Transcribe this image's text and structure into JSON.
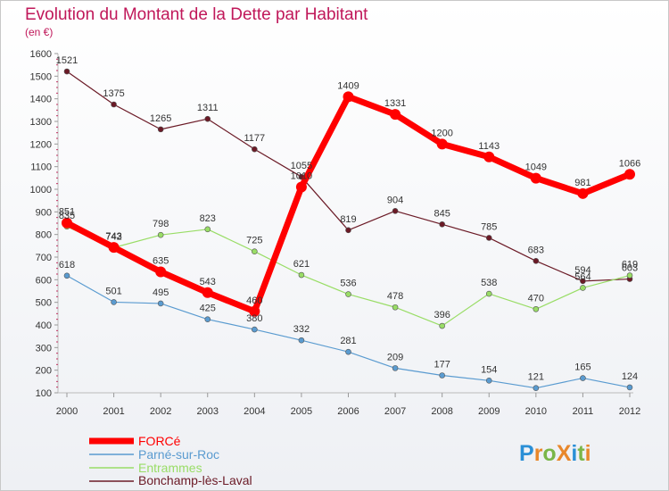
{
  "chart_data": {
    "type": "line",
    "title": "Evolution du Montant de la Dette par Habitant",
    "subtitle": "(en €)",
    "x": [
      "2000",
      "2001",
      "2002",
      "2003",
      "2004",
      "2005",
      "2006",
      "2007",
      "2008",
      "2009",
      "2010",
      "2011",
      "2012"
    ],
    "ylim": [
      100,
      1600
    ],
    "yticks": [
      100,
      200,
      300,
      400,
      500,
      600,
      700,
      800,
      900,
      1000,
      1100,
      1200,
      1300,
      1400,
      1500,
      1600
    ],
    "grid": false,
    "legend_position": "bottom-left",
    "series": [
      {
        "name": "Bonchamp-lès-Laval",
        "color": "#6b1a26",
        "width": 1.2,
        "marker": 3,
        "values": [
          1521,
          1375,
          1265,
          1311,
          1177,
          1055,
          819,
          904,
          845,
          785,
          683,
          594,
          603
        ]
      },
      {
        "name": "Entrammes",
        "color": "#99dd66",
        "width": 1.2,
        "marker": 3,
        "values": [
          835,
          742,
          798,
          823,
          725,
          621,
          536,
          478,
          396,
          538,
          470,
          564,
          619
        ]
      },
      {
        "name": "Parné-sur-Roc",
        "color": "#5a9bd0",
        "width": 1.2,
        "marker": 3,
        "values": [
          618,
          501,
          495,
          425,
          380,
          332,
          281,
          209,
          177,
          154,
          121,
          165,
          124
        ]
      },
      {
        "name": "FORCé",
        "color": "#ff0000",
        "width": 7,
        "marker": 6,
        "values": [
          851,
          743,
          635,
          543,
          460,
          1010,
          1409,
          1331,
          1200,
          1143,
          1049,
          981,
          1066
        ]
      }
    ]
  },
  "legend": {
    "items": [
      {
        "label": "FORCé",
        "color": "#ff0000"
      },
      {
        "label": "Parné-sur-Roc",
        "color": "#5a9bd0"
      },
      {
        "label": "Entrammes",
        "color": "#99dd66"
      },
      {
        "label": "Bonchamp-lès-Laval",
        "color": "#6b1a26"
      }
    ]
  },
  "logo": {
    "text": "ProXiti"
  }
}
